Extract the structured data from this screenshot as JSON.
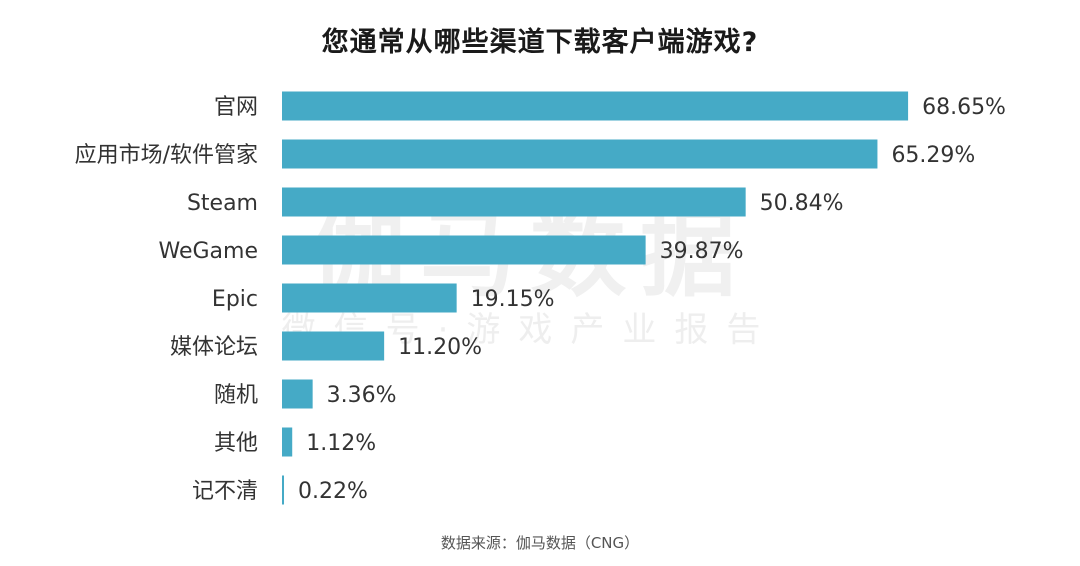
{
  "title": "您通常从哪些渠道下载客户端游戏?",
  "watermark": {
    "main": "伽马数据",
    "sub": "微信号·游戏产业报告"
  },
  "source": "数据来源：伽马数据（CNG）",
  "colors": {
    "bar": "#45aac6",
    "category_text": "#333333",
    "value_text": "#333333"
  },
  "chart_data": {
    "type": "bar",
    "orientation": "horizontal",
    "title": "您通常从哪些渠道下载客户端游戏?",
    "xlabel": "",
    "ylabel": "",
    "unit": "%",
    "xlim": [
      0,
      70
    ],
    "grid": false,
    "legend": "none",
    "categories": [
      "官网",
      "应用市场/软件管家",
      "Steam",
      "WeGame",
      "Epic",
      "媒体论坛",
      "随机",
      "其他",
      "记不清"
    ],
    "values": [
      68.65,
      65.29,
      50.84,
      39.87,
      19.15,
      11.2,
      3.36,
      1.12,
      0.22
    ],
    "labels": [
      "68.65%",
      "65.29%",
      "50.84%",
      "39.87%",
      "19.15%",
      "11.20%",
      "3.36%",
      "1.12%",
      "0.22%"
    ]
  }
}
